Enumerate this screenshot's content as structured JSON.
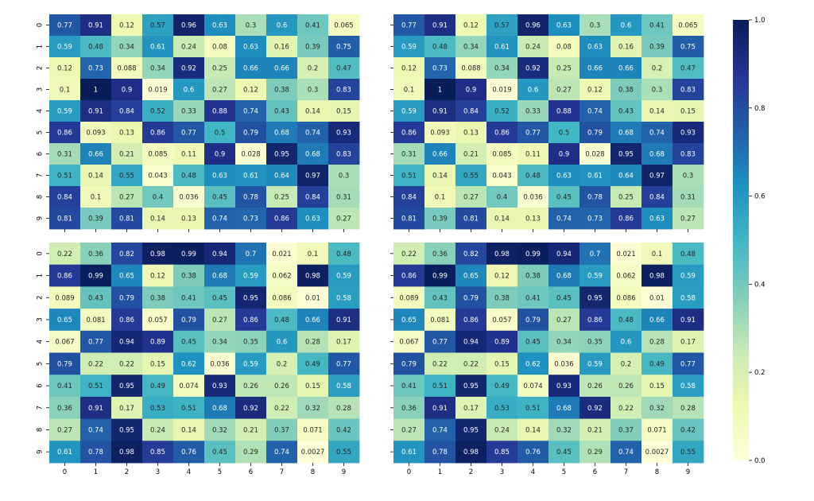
{
  "chart_data": {
    "type": "heatmap",
    "colormap": "YlGnBu",
    "colormap_stops": [
      "#ffffd9",
      "#edf8b1",
      "#c7e9b4",
      "#7fcdbb",
      "#41b6c4",
      "#1d91c0",
      "#225ea8",
      "#253494",
      "#081d58"
    ],
    "vmin": 0.0,
    "vmax": 1.0,
    "x_tick_labels": [
      "0",
      "1",
      "2",
      "3",
      "4",
      "5",
      "6",
      "7",
      "8",
      "9"
    ],
    "y_tick_labels": [
      "0",
      "1",
      "2",
      "3",
      "4",
      "5",
      "6",
      "7",
      "8",
      "9"
    ],
    "colorbar_ticks": [
      "0.0",
      "0.2",
      "0.4",
      "0.6",
      "0.8",
      "1.0"
    ],
    "annotated": true,
    "panels": [
      {
        "values": [
          [
            0.77,
            0.91,
            0.12,
            0.57,
            0.96,
            0.63,
            0.3,
            0.6,
            0.41,
            0.065
          ],
          [
            0.59,
            0.48,
            0.34,
            0.61,
            0.24,
            0.08,
            0.63,
            0.16,
            0.39,
            0.75
          ],
          [
            0.12,
            0.73,
            0.088,
            0.34,
            0.92,
            0.25,
            0.66,
            0.66,
            0.2,
            0.47
          ],
          [
            0.1,
            1,
            0.9,
            0.019,
            0.6,
            0.27,
            0.12,
            0.38,
            0.3,
            0.83
          ],
          [
            0.59,
            0.91,
            0.84,
            0.52,
            0.33,
            0.88,
            0.74,
            0.43,
            0.14,
            0.15
          ],
          [
            0.86,
            0.093,
            0.13,
            0.86,
            0.77,
            0.5,
            0.79,
            0.68,
            0.74,
            0.93
          ],
          [
            0.31,
            0.66,
            0.21,
            0.085,
            0.11,
            0.9,
            0.028,
            0.95,
            0.68,
            0.83
          ],
          [
            0.51,
            0.14,
            0.55,
            0.043,
            0.48,
            0.63,
            0.61,
            0.64,
            0.97,
            0.3
          ],
          [
            0.84,
            0.1,
            0.27,
            0.4,
            0.036,
            0.45,
            0.78,
            0.25,
            0.84,
            0.31
          ],
          [
            0.81,
            0.39,
            0.81,
            0.14,
            0.13,
            0.74,
            0.73,
            0.86,
            0.63,
            0.27
          ]
        ],
        "show_y_labels": true,
        "show_x_labels": false
      },
      {
        "values": [
          [
            0.77,
            0.91,
            0.12,
            0.57,
            0.96,
            0.63,
            0.3,
            0.6,
            0.41,
            0.065
          ],
          [
            0.59,
            0.48,
            0.34,
            0.61,
            0.24,
            0.08,
            0.63,
            0.16,
            0.39,
            0.75
          ],
          [
            0.12,
            0.73,
            0.088,
            0.34,
            0.92,
            0.25,
            0.66,
            0.66,
            0.2,
            0.47
          ],
          [
            0.1,
            1,
            0.9,
            0.019,
            0.6,
            0.27,
            0.12,
            0.38,
            0.3,
            0.83
          ],
          [
            0.59,
            0.91,
            0.84,
            0.52,
            0.33,
            0.88,
            0.74,
            0.43,
            0.14,
            0.15
          ],
          [
            0.86,
            0.093,
            0.13,
            0.86,
            0.77,
            0.5,
            0.79,
            0.68,
            0.74,
            0.93
          ],
          [
            0.31,
            0.66,
            0.21,
            0.085,
            0.11,
            0.9,
            0.028,
            0.95,
            0.68,
            0.83
          ],
          [
            0.51,
            0.14,
            0.55,
            0.043,
            0.48,
            0.63,
            0.61,
            0.64,
            0.97,
            0.3
          ],
          [
            0.84,
            0.1,
            0.27,
            0.4,
            0.036,
            0.45,
            0.78,
            0.25,
            0.84,
            0.31
          ],
          [
            0.81,
            0.39,
            0.81,
            0.14,
            0.13,
            0.74,
            0.73,
            0.86,
            0.63,
            0.27
          ]
        ],
        "show_y_labels": false,
        "show_x_labels": false
      },
      {
        "values": [
          [
            0.22,
            0.36,
            0.82,
            0.98,
            0.99,
            0.94,
            0.7,
            0.021,
            0.1,
            0.48
          ],
          [
            0.86,
            0.99,
            0.65,
            0.12,
            0.38,
            0.68,
            0.59,
            0.062,
            0.98,
            0.59
          ],
          [
            0.089,
            0.43,
            0.79,
            0.38,
            0.41,
            0.45,
            0.95,
            0.086,
            0.01,
            0.58
          ],
          [
            0.65,
            0.081,
            0.86,
            0.057,
            0.79,
            0.27,
            0.86,
            0.48,
            0.66,
            0.91
          ],
          [
            0.067,
            0.77,
            0.94,
            0.89,
            0.45,
            0.34,
            0.35,
            0.6,
            0.28,
            0.17
          ],
          [
            0.79,
            0.22,
            0.22,
            0.15,
            0.62,
            0.036,
            0.59,
            0.2,
            0.49,
            0.77
          ],
          [
            0.41,
            0.51,
            0.95,
            0.49,
            0.074,
            0.93,
            0.26,
            0.26,
            0.15,
            0.58
          ],
          [
            0.36,
            0.91,
            0.17,
            0.53,
            0.51,
            0.68,
            0.92,
            0.22,
            0.32,
            0.28
          ],
          [
            0.27,
            0.74,
            0.95,
            0.24,
            0.14,
            0.32,
            0.21,
            0.37,
            0.071,
            0.42
          ],
          [
            0.61,
            0.78,
            0.98,
            0.85,
            0.76,
            0.45,
            0.29,
            0.74,
            0.0027,
            0.55
          ]
        ],
        "show_y_labels": true,
        "show_x_labels": true
      },
      {
        "values": [
          [
            0.22,
            0.36,
            0.82,
            0.98,
            0.99,
            0.94,
            0.7,
            0.021,
            0.1,
            0.48
          ],
          [
            0.86,
            0.99,
            0.65,
            0.12,
            0.38,
            0.68,
            0.59,
            0.062,
            0.98,
            0.59
          ],
          [
            0.089,
            0.43,
            0.79,
            0.38,
            0.41,
            0.45,
            0.95,
            0.086,
            0.01,
            0.58
          ],
          [
            0.65,
            0.081,
            0.86,
            0.057,
            0.79,
            0.27,
            0.86,
            0.48,
            0.66,
            0.91
          ],
          [
            0.067,
            0.77,
            0.94,
            0.89,
            0.45,
            0.34,
            0.35,
            0.6,
            0.28,
            0.17
          ],
          [
            0.79,
            0.22,
            0.22,
            0.15,
            0.62,
            0.036,
            0.59,
            0.2,
            0.49,
            0.77
          ],
          [
            0.41,
            0.51,
            0.95,
            0.49,
            0.074,
            0.93,
            0.26,
            0.26,
            0.15,
            0.58
          ],
          [
            0.36,
            0.91,
            0.17,
            0.53,
            0.51,
            0.68,
            0.92,
            0.22,
            0.32,
            0.28
          ],
          [
            0.27,
            0.74,
            0.95,
            0.24,
            0.14,
            0.32,
            0.21,
            0.37,
            0.071,
            0.42
          ],
          [
            0.61,
            0.78,
            0.98,
            0.85,
            0.76,
            0.45,
            0.29,
            0.74,
            0.0027,
            0.55
          ]
        ],
        "show_y_labels": false,
        "show_x_labels": true
      }
    ]
  }
}
